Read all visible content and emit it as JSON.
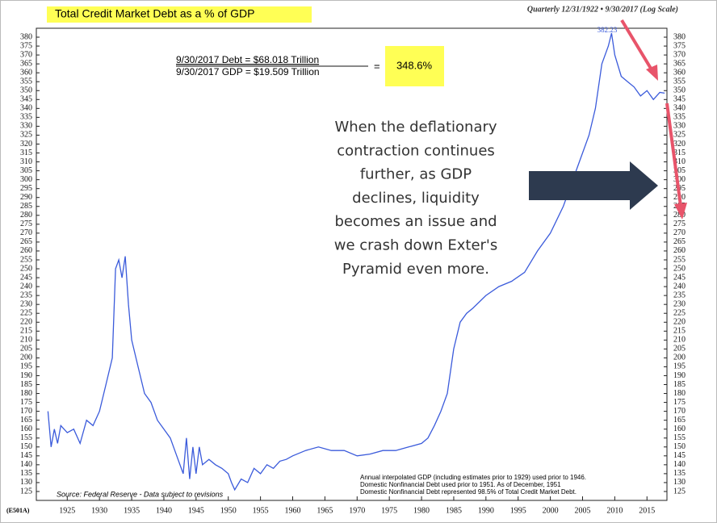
{
  "chart_data": {
    "type": "line",
    "title": "Total Credit Market Debt as a % of GDP",
    "subtitle": "Quarterly 12/31/1922 • 9/30/2017 (Log Scale)",
    "formula": [
      "9/30/2017  Debt  =    $68.018 Trillion",
      "9/30/2017  GDP  =    $19.509 Trillion"
    ],
    "formula_equals": "=",
    "formula_result": "348.6%",
    "peak_label": "382.23",
    "annotation": [
      "When the deflationary",
      "contraction continues",
      "further, as GDP",
      "declines, liquidity",
      "becomes an issue and",
      "we crash down Exter's",
      "Pyramid even more."
    ],
    "source": "Source: Federal Reserve - Data subject to revisions",
    "notes": [
      "Annual interpolated GDP (including estimates prior to 1929) used prior to 1946.",
      "Domestic Nonfinancial Debt used prior to 1951. As of December, 1951",
      "Domestic Nonfinancial Debt represented 98.5% of Total Credit Market Debt."
    ],
    "code": "(E501A)",
    "color": "#3b5bdb",
    "x": [
      1922,
      1922.5,
      1923,
      1923.5,
      1924,
      1925,
      1926,
      1927,
      1928,
      1929,
      1930,
      1931,
      1932,
      1932.5,
      1933,
      1933.5,
      1934,
      1934.5,
      1935,
      1936,
      1937,
      1938,
      1939,
      1940,
      1941,
      1942,
      1943,
      1943.5,
      1944,
      1944.5,
      1945,
      1945.5,
      1946,
      1947,
      1948,
      1949,
      1950,
      1950.5,
      1951,
      1952,
      1953,
      1954,
      1955,
      1956,
      1957,
      1958,
      1959,
      1960,
      1962,
      1964,
      1966,
      1968,
      1970,
      1972,
      1974,
      1976,
      1978,
      1980,
      1981,
      1982,
      1983,
      1984,
      1985,
      1986,
      1987,
      1988,
      1990,
      1992,
      1994,
      1996,
      1998,
      2000,
      2002,
      2004,
      2006,
      2007,
      2008,
      2009,
      2009.5,
      2010,
      2011,
      2012,
      2013,
      2014,
      2015,
      2016,
      2017,
      2017.75
    ],
    "values": [
      170,
      150,
      160,
      152,
      162,
      158,
      160,
      152,
      165,
      162,
      170,
      185,
      200,
      250,
      255,
      245,
      257,
      230,
      210,
      195,
      180,
      175,
      165,
      160,
      155,
      145,
      135,
      155,
      132,
      150,
      135,
      150,
      140,
      143,
      140,
      138,
      135,
      130,
      126,
      132,
      130,
      138,
      135,
      140,
      138,
      142,
      143,
      145,
      148,
      150,
      148,
      148,
      145,
      146,
      148,
      148,
      150,
      152,
      155,
      162,
      170,
      180,
      205,
      220,
      225,
      228,
      235,
      240,
      243,
      248,
      260,
      270,
      285,
      305,
      325,
      340,
      365,
      375,
      382.23,
      370,
      358,
      355,
      352,
      347,
      350,
      345,
      349,
      348.6
    ],
    "xlim": [
      1920.2,
      2018.1
    ],
    "xticks": [
      1925,
      1930,
      1935,
      1940,
      1945,
      1950,
      1955,
      1960,
      1965,
      1970,
      1975,
      1980,
      1985,
      1990,
      1995,
      2000,
      2005,
      2010,
      2015
    ],
    "ylim": [
      120,
      385
    ],
    "yticks": [
      125,
      130,
      135,
      140,
      145,
      150,
      155,
      160,
      165,
      170,
      175,
      180,
      185,
      190,
      195,
      200,
      205,
      210,
      215,
      220,
      225,
      230,
      235,
      240,
      245,
      250,
      255,
      260,
      265,
      270,
      275,
      280,
      285,
      290,
      295,
      300,
      305,
      310,
      315,
      320,
      325,
      330,
      335,
      340,
      345,
      350,
      355,
      360,
      365,
      370,
      375,
      380
    ]
  }
}
